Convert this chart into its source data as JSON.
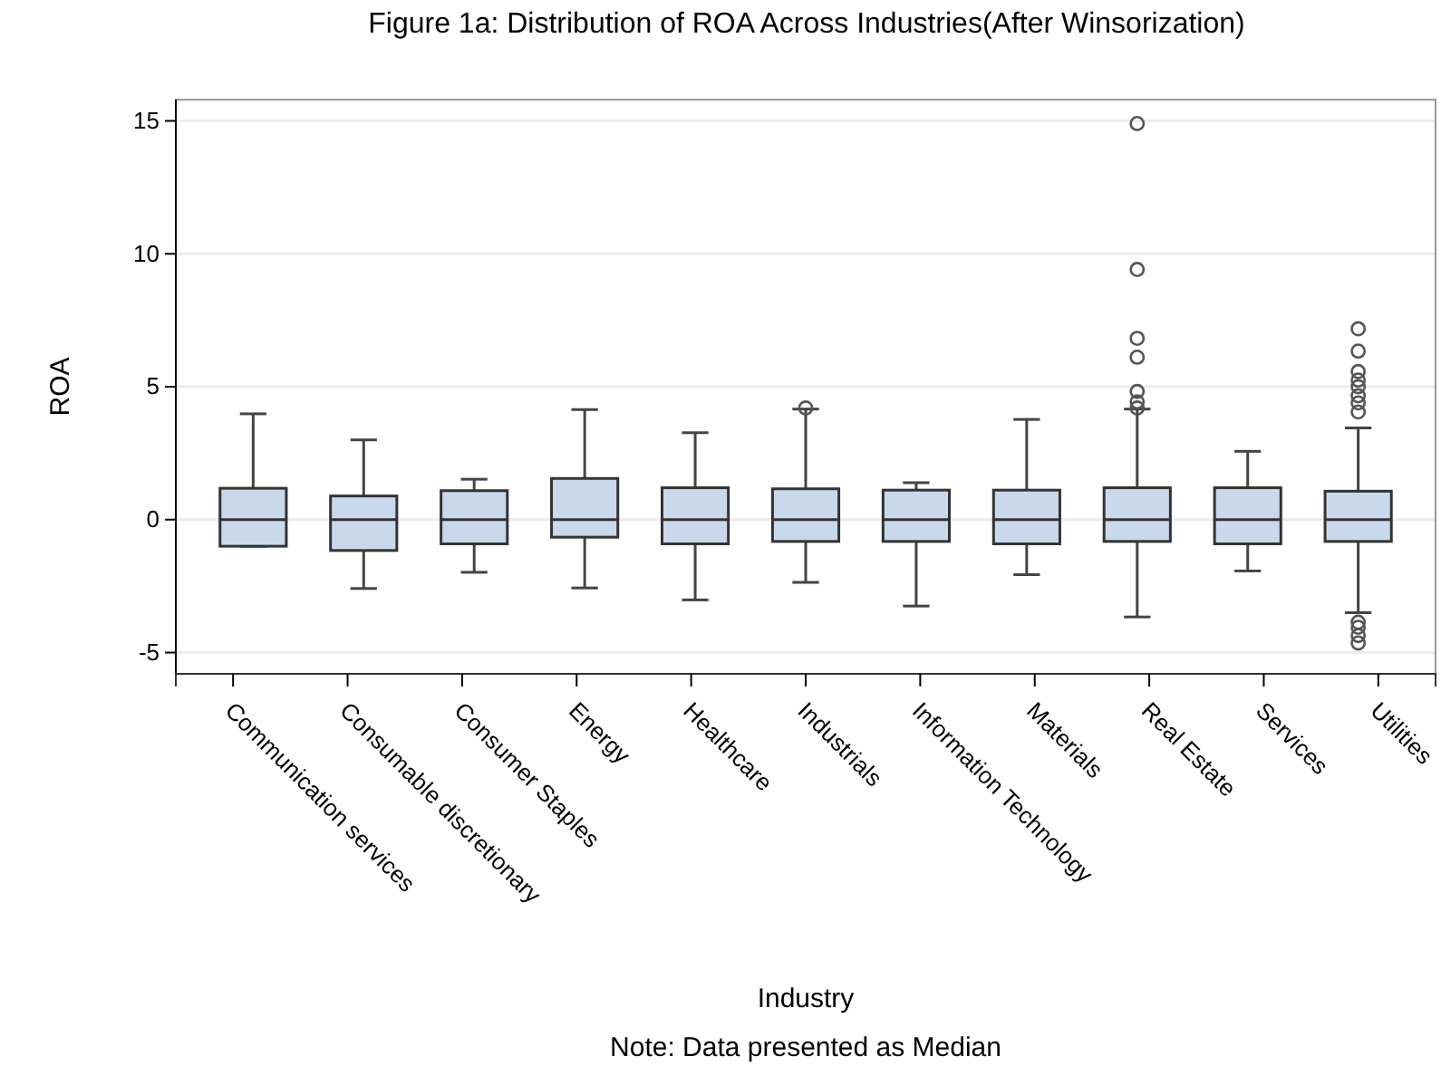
{
  "chart_data": {
    "type": "box",
    "title": "Figure 1a: Distribution of ROA Across Industries(After Winsorization)",
    "xlabel": "Industry",
    "ylabel": "ROA",
    "annotations": [
      "Note: Data presented as Median"
    ],
    "categories": [
      "Communication services",
      "Consumable discretionary",
      "Consumer Staples",
      "Energy",
      "Healthcare",
      "Industrials",
      "Information Technology",
      "Materials",
      "Real Estate",
      "Services",
      "Utilities"
    ],
    "color": "#c9d9ec",
    "ylim": [
      -5.8,
      15.8
    ],
    "yticks": [
      -5,
      0,
      5,
      10,
      15
    ],
    "grid": "y",
    "marker": "circle",
    "boxes": [
      {
        "low": -1.0,
        "q1": -1.0,
        "median": 0,
        "q3": 1.18,
        "high": 3.98
      },
      {
        "low": -2.59,
        "q1": -1.16,
        "median": 0,
        "q3": 0.89,
        "high": 3.0
      },
      {
        "low": -1.98,
        "q1": -0.91,
        "median": 0,
        "q3": 1.09,
        "high": 1.52
      },
      {
        "low": -2.57,
        "q1": -0.66,
        "median": 0,
        "q3": 1.55,
        "high": 4.14
      },
      {
        "low": -3.02,
        "q1": -0.91,
        "median": 0,
        "q3": 1.2,
        "high": 3.27
      },
      {
        "low": -2.36,
        "q1": -0.82,
        "median": 0,
        "q3": 1.16,
        "high": 4.16,
        "outliers": [
          4.2
        ]
      },
      {
        "low": -3.25,
        "q1": -0.82,
        "median": 0,
        "q3": 1.11,
        "high": 1.39
      },
      {
        "low": -2.07,
        "q1": -0.91,
        "median": 0,
        "q3": 1.11,
        "high": 3.77
      },
      {
        "low": -3.66,
        "q1": -0.82,
        "median": 0,
        "q3": 1.2,
        "high": 4.16,
        "outliers": [
          14.9,
          9.41,
          6.82,
          6.11,
          4.82,
          4.43,
          4.2
        ]
      },
      {
        "low": -1.93,
        "q1": -0.91,
        "median": 0,
        "q3": 1.2,
        "high": 2.57
      },
      {
        "low": -3.5,
        "q1": -0.82,
        "median": 0,
        "q3": 1.07,
        "high": 3.45,
        "outliers": [
          7.18,
          6.34,
          5.57,
          5.25,
          5.0,
          4.66,
          4.39,
          4.05,
          -3.86,
          -4.05,
          -4.36,
          -4.64
        ]
      }
    ]
  }
}
